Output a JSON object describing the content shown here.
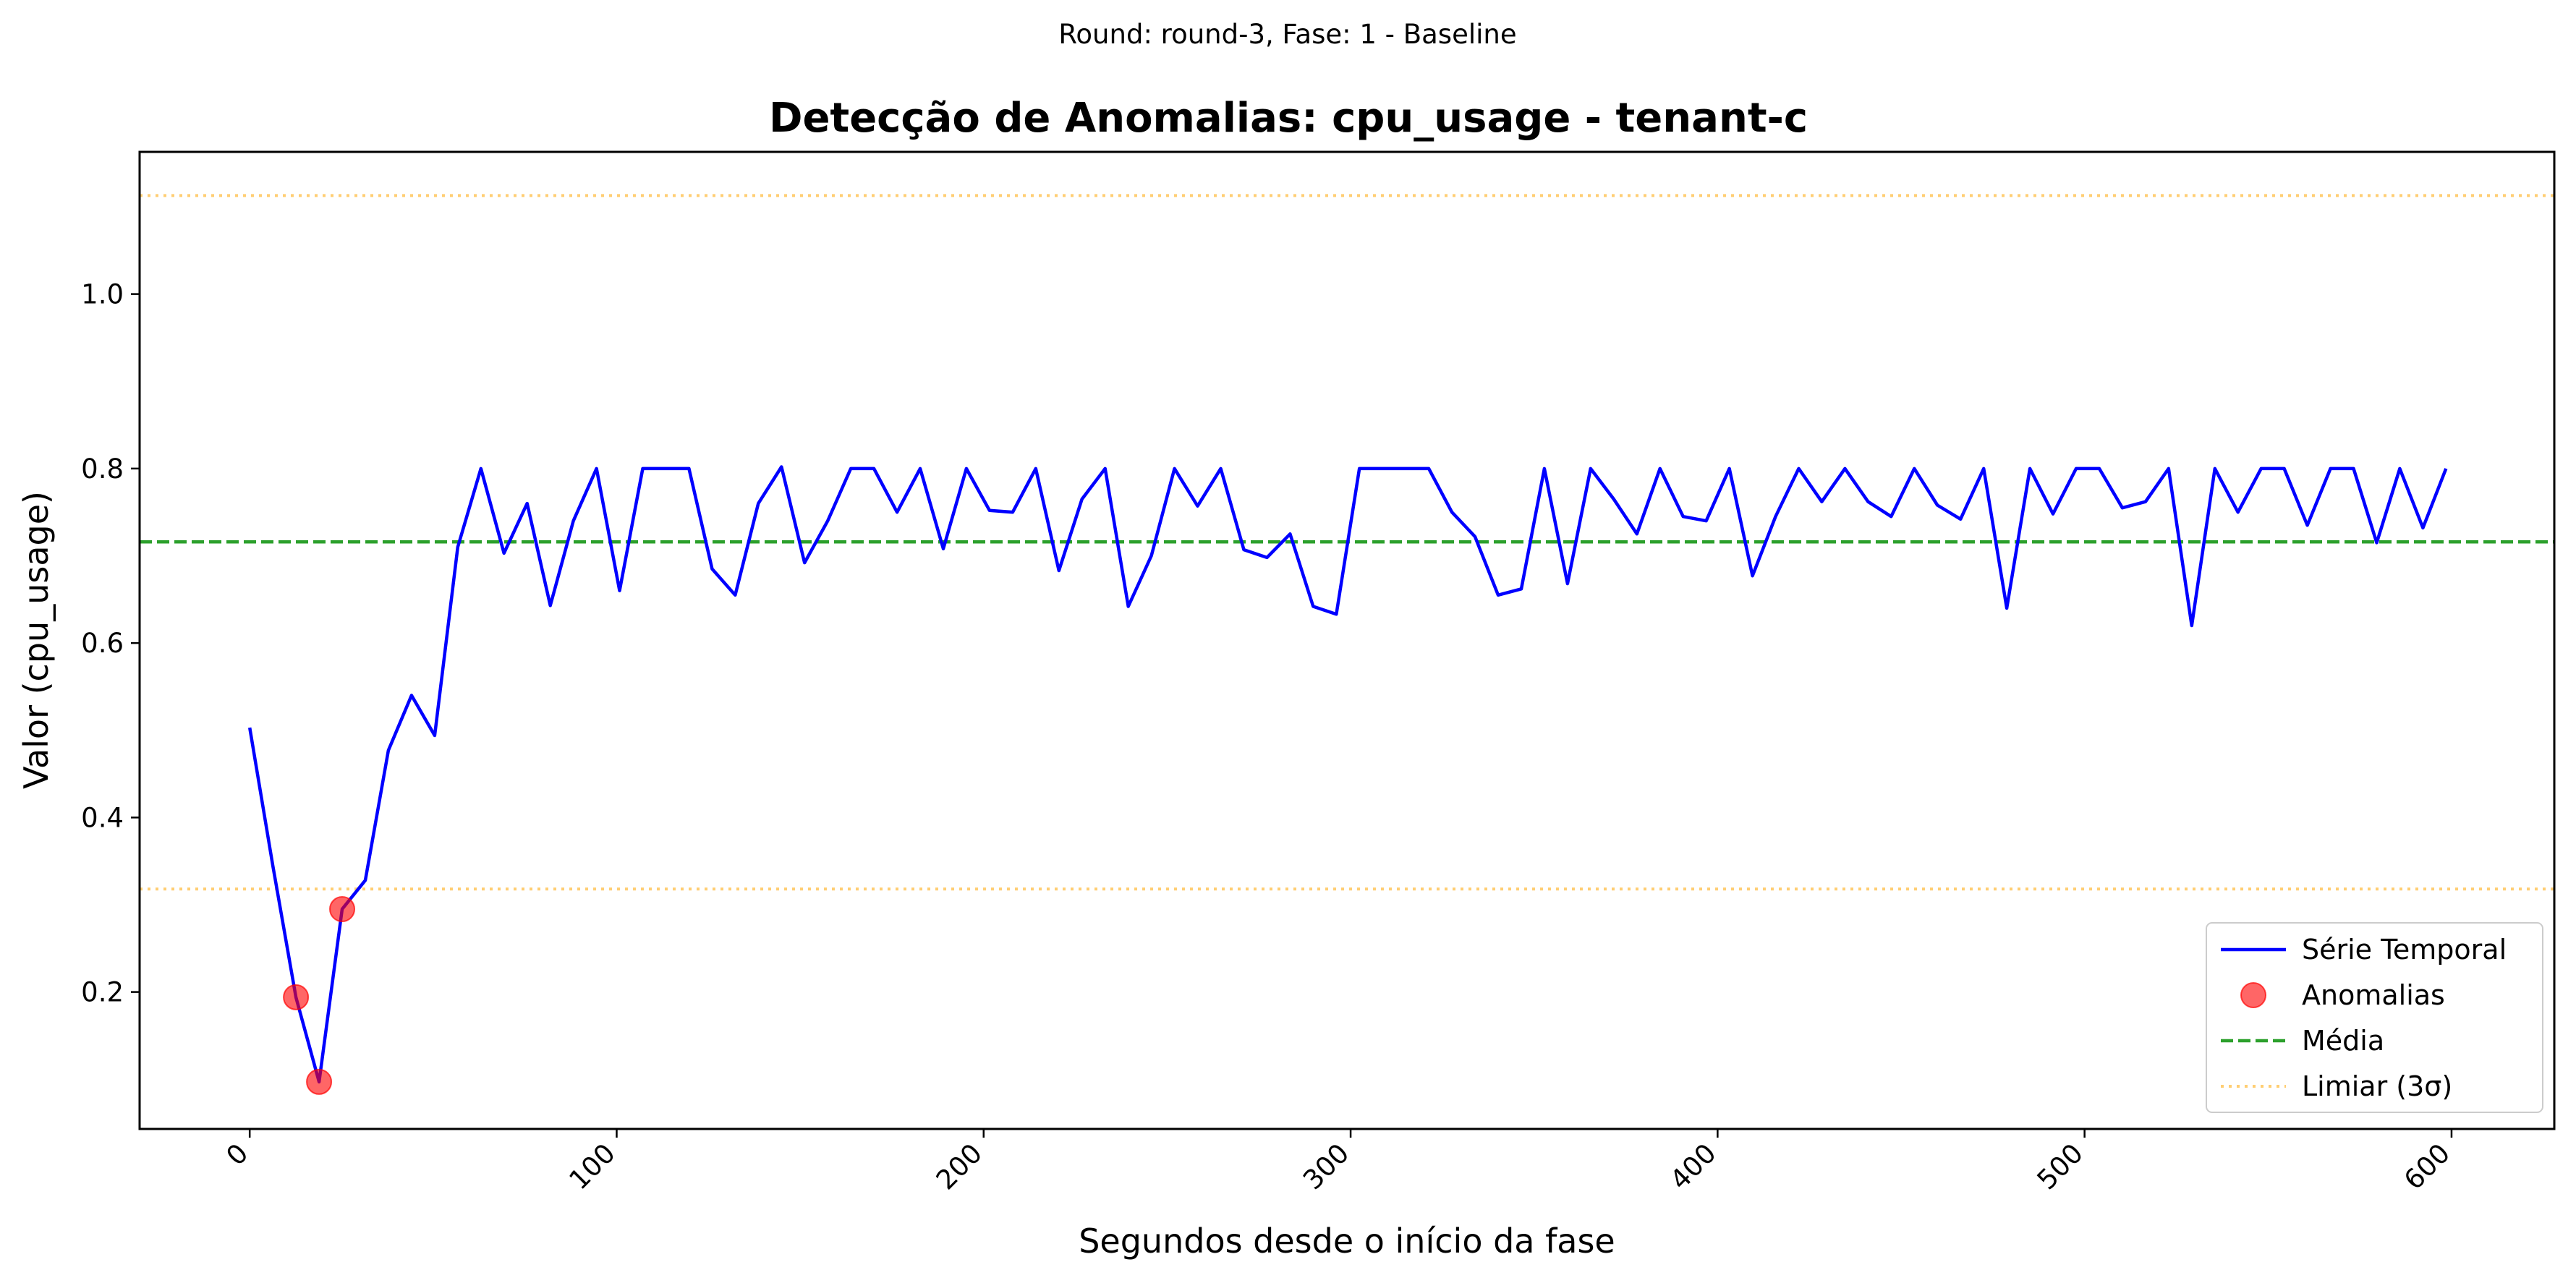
{
  "chart_data": {
    "type": "line",
    "suptitle": "Round: round-3, Fase: 1 - Baseline",
    "title": "Detecção de Anomalias: cpu_usage - tenant-c",
    "xlabel": "Segundos desde o início da fase",
    "ylabel": "Valor (cpu_usage)",
    "xlim": [
      -30,
      628
    ],
    "ylim": [
      0.043,
      1.163
    ],
    "x_ticks": [
      0,
      100,
      200,
      300,
      400,
      500,
      600
    ],
    "x_tick_labels": [
      "0",
      "100",
      "200",
      "300",
      "400",
      "500",
      "600"
    ],
    "x_tick_rotation": 45,
    "y_ticks": [
      0.2,
      0.4,
      0.6,
      0.8,
      1.0
    ],
    "y_tick_labels": [
      "0.2",
      "0.4",
      "0.6",
      "0.8",
      "1.0"
    ],
    "grid": false,
    "legend_position": "lower right",
    "series": [
      {
        "name": "Série Temporal",
        "kind": "line",
        "color": "#0000ff",
        "x": [
          0,
          6.3,
          12.6,
          18.9,
          25.2,
          31.5,
          37.8,
          44.1,
          50.4,
          56.7,
          63,
          69.3,
          75.6,
          81.9,
          88.2,
          94.5,
          100.8,
          107.1,
          113.4,
          119.7,
          126,
          132.3,
          138.6,
          144.9,
          151.2,
          157.5,
          163.8,
          170.1,
          176.4,
          182.7,
          189,
          195.3,
          201.6,
          207.9,
          214.2,
          220.5,
          226.8,
          233.1,
          239.4,
          245.7,
          252,
          258.3,
          264.6,
          270.9,
          277.2,
          283.5,
          289.8,
          296.1,
          302.4,
          308.7,
          315,
          321.3,
          327.6,
          333.9,
          340.2,
          346.5,
          352.8,
          359.1,
          365.4,
          371.7,
          378,
          384.3,
          390.6,
          396.9,
          403.2,
          409.5,
          415.8,
          422.1,
          428.4,
          434.7,
          441,
          447.3,
          453.6,
          459.9,
          466.2,
          472.5,
          478.8,
          485.1,
          491.4,
          497.7,
          504,
          510.3,
          516.6,
          522.9,
          529.2,
          535.5,
          541.8,
          548.1,
          554.4,
          560.7,
          567,
          573.3,
          579.6,
          585.9,
          592.2,
          598.5
        ],
        "values": [
          0.503,
          0.345,
          0.194,
          0.097,
          0.295,
          0.328,
          0.477,
          0.54,
          0.494,
          0.71,
          0.8,
          0.703,
          0.76,
          0.643,
          0.74,
          0.8,
          0.66,
          0.8,
          0.8,
          0.8,
          0.685,
          0.655,
          0.76,
          0.802,
          0.692,
          0.74,
          0.8,
          0.8,
          0.75,
          0.8,
          0.708,
          0.8,
          0.752,
          0.75,
          0.8,
          0.683,
          0.765,
          0.8,
          0.642,
          0.7,
          0.8,
          0.757,
          0.8,
          0.707,
          0.698,
          0.725,
          0.642,
          0.633,
          0.8,
          0.8,
          0.8,
          0.8,
          0.75,
          0.722,
          0.655,
          0.662,
          0.8,
          0.668,
          0.8,
          0.765,
          0.725,
          0.8,
          0.745,
          0.74,
          0.8,
          0.677,
          0.745,
          0.8,
          0.762,
          0.8,
          0.762,
          0.745,
          0.8,
          0.758,
          0.742,
          0.8,
          0.64,
          0.8,
          0.748,
          0.8,
          0.8,
          0.755,
          0.762,
          0.8,
          0.62,
          0.8,
          0.75,
          0.8,
          0.8,
          0.735,
          0.8,
          0.8,
          0.715,
          0.8,
          0.732,
          0.8
        ]
      },
      {
        "name": "Anomalias",
        "kind": "scatter",
        "color": "#ff0000",
        "x": [
          12.6,
          18.9,
          25.2
        ],
        "values": [
          0.194,
          0.097,
          0.295
        ]
      },
      {
        "name": "Média",
        "kind": "hline",
        "style": "dashed",
        "color": "#2ca02c",
        "value": 0.716
      },
      {
        "name": "Limiar (3σ)",
        "kind": "hline",
        "style": "dotted",
        "color": "#ffa500",
        "values": [
          1.113,
          0.318
        ]
      }
    ]
  }
}
